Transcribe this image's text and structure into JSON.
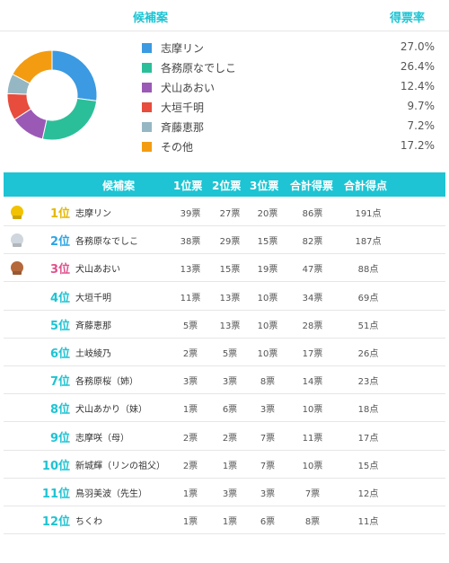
{
  "pie_header": {
    "candidate_label": "候補案",
    "rate_label": "得票率"
  },
  "chart_data": {
    "type": "pie",
    "categories": [
      "志摩リン",
      "各務原なでしこ",
      "犬山あおい",
      "大垣千明",
      "斉藤恵那",
      "その他"
    ],
    "values": [
      27.0,
      26.4,
      12.4,
      9.7,
      7.2,
      17.2
    ],
    "colors": [
      "#3b9ae1",
      "#2bbf99",
      "#9b59b6",
      "#e74c3c",
      "#95b7c3",
      "#f39c12"
    ],
    "donut": true
  },
  "legend": [
    {
      "name": "志摩リン",
      "pct": "27.0%",
      "color": "#3b9ae1"
    },
    {
      "name": "各務原なでしこ",
      "pct": "26.4%",
      "color": "#2bbf99"
    },
    {
      "name": "犬山あおい",
      "pct": "12.4%",
      "color": "#9b59b6"
    },
    {
      "name": "大垣千明",
      "pct": "9.7%",
      "color": "#e74c3c"
    },
    {
      "name": "斉藤恵那",
      "pct": "7.2%",
      "color": "#95b7c3"
    },
    {
      "name": "その他",
      "pct": "17.2%",
      "color": "#f39c12"
    }
  ],
  "table": {
    "header": {
      "candidate": "候補案",
      "first": "1位票",
      "second": "2位票",
      "third": "3位票",
      "total_votes": "合計得票",
      "total_points": "合計得点"
    },
    "rows": [
      {
        "rank": "1位",
        "medal": "gold",
        "name": "志摩リン",
        "first": "39票",
        "second": "27票",
        "third": "20票",
        "total": "86票",
        "points": "191点"
      },
      {
        "rank": "2位",
        "medal": "silver",
        "name": "各務原なでしこ",
        "first": "38票",
        "second": "29票",
        "third": "15票",
        "total": "82票",
        "points": "187点"
      },
      {
        "rank": "3位",
        "medal": "bronze",
        "name": "犬山あおい",
        "first": "13票",
        "second": "15票",
        "third": "19票",
        "total": "47票",
        "points": "88点"
      },
      {
        "rank": "4位",
        "medal": "",
        "name": "大垣千明",
        "first": "11票",
        "second": "13票",
        "third": "10票",
        "total": "34票",
        "points": "69点"
      },
      {
        "rank": "5位",
        "medal": "",
        "name": "斉藤恵那",
        "first": "5票",
        "second": "13票",
        "third": "10票",
        "total": "28票",
        "points": "51点"
      },
      {
        "rank": "6位",
        "medal": "",
        "name": "土岐綾乃",
        "first": "2票",
        "second": "5票",
        "third": "10票",
        "total": "17票",
        "points": "26点"
      },
      {
        "rank": "7位",
        "medal": "",
        "name": "各務原桜（姉）",
        "first": "3票",
        "second": "3票",
        "third": "8票",
        "total": "14票",
        "points": "23点"
      },
      {
        "rank": "8位",
        "medal": "",
        "name": "犬山あかり（妹）",
        "first": "1票",
        "second": "6票",
        "third": "3票",
        "total": "10票",
        "points": "18点"
      },
      {
        "rank": "9位",
        "medal": "",
        "name": "志摩咲（母）",
        "first": "2票",
        "second": "2票",
        "third": "7票",
        "total": "11票",
        "points": "17点"
      },
      {
        "rank": "10位",
        "medal": "",
        "name": "新城輝（リンの祖父）",
        "first": "2票",
        "second": "1票",
        "third": "7票",
        "total": "10票",
        "points": "15点"
      },
      {
        "rank": "11位",
        "medal": "",
        "name": "鳥羽美波（先生）",
        "first": "1票",
        "second": "3票",
        "third": "3票",
        "total": "7票",
        "points": "12点"
      },
      {
        "rank": "12位",
        "medal": "",
        "name": "ちくわ",
        "first": "1票",
        "second": "1票",
        "third": "6票",
        "total": "8票",
        "points": "11点"
      }
    ]
  },
  "colors": {
    "accent": "#1ec4d3",
    "rank_gold_text": "#e6b800",
    "rank_silver_text": "#2aa6e6",
    "rank_bronze_text": "#e0508c",
    "rank_default_text": "#1ec4d3"
  }
}
